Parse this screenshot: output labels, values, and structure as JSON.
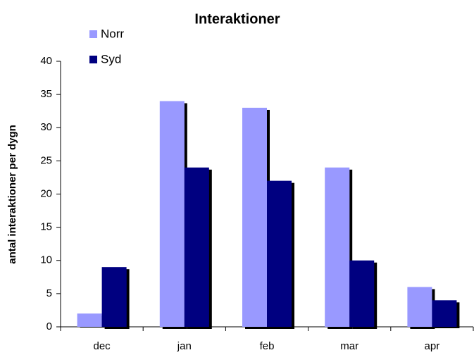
{
  "chart_data": {
    "type": "bar",
    "title": "Interaktioner",
    "y_label": "antal interaktioner per dygn",
    "categories": [
      "dec",
      "jan",
      "feb",
      "mar",
      "apr"
    ],
    "series": [
      {
        "name": "Norr",
        "color": "#9999ff",
        "values": [
          2,
          34,
          33,
          24,
          6
        ]
      },
      {
        "name": "Syd",
        "color": "#000080",
        "values": [
          9,
          24,
          22,
          10,
          4
        ]
      }
    ],
    "ylim": [
      0,
      40
    ],
    "yticks": [
      0,
      5,
      10,
      15,
      20,
      25,
      30,
      35,
      40
    ],
    "grid": false,
    "legend": "top-left"
  }
}
